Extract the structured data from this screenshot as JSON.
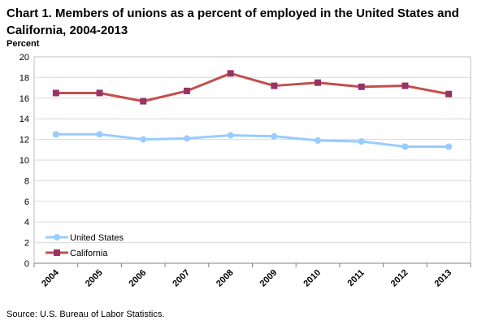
{
  "chart_data": {
    "type": "line",
    "title": "Chart 1. Members of unions as a percent of employed in the United States and California, 2004-2013",
    "ylabel": "Percent",
    "xlabel": "",
    "categories": [
      "2004",
      "2005",
      "2006",
      "2007",
      "2008",
      "2009",
      "2010",
      "2011",
      "2012",
      "2013"
    ],
    "ylim": [
      0,
      20
    ],
    "yticks": [
      0,
      2,
      4,
      6,
      8,
      10,
      12,
      14,
      16,
      18,
      20
    ],
    "grid": true,
    "legend": "bottom-left",
    "series": [
      {
        "name": "United States",
        "color": "#99ccff",
        "marker": "circle",
        "values": [
          12.5,
          12.5,
          12.0,
          12.1,
          12.4,
          12.3,
          11.9,
          11.8,
          11.3,
          11.3
        ]
      },
      {
        "name": "California",
        "color": "#c0504d",
        "marker_color": "#993366",
        "marker": "square",
        "values": [
          16.5,
          16.5,
          15.7,
          16.7,
          18.4,
          17.2,
          17.5,
          17.1,
          17.2,
          16.4
        ]
      }
    ]
  },
  "source": "Source: U.S. Bureau of Labor Statistics."
}
